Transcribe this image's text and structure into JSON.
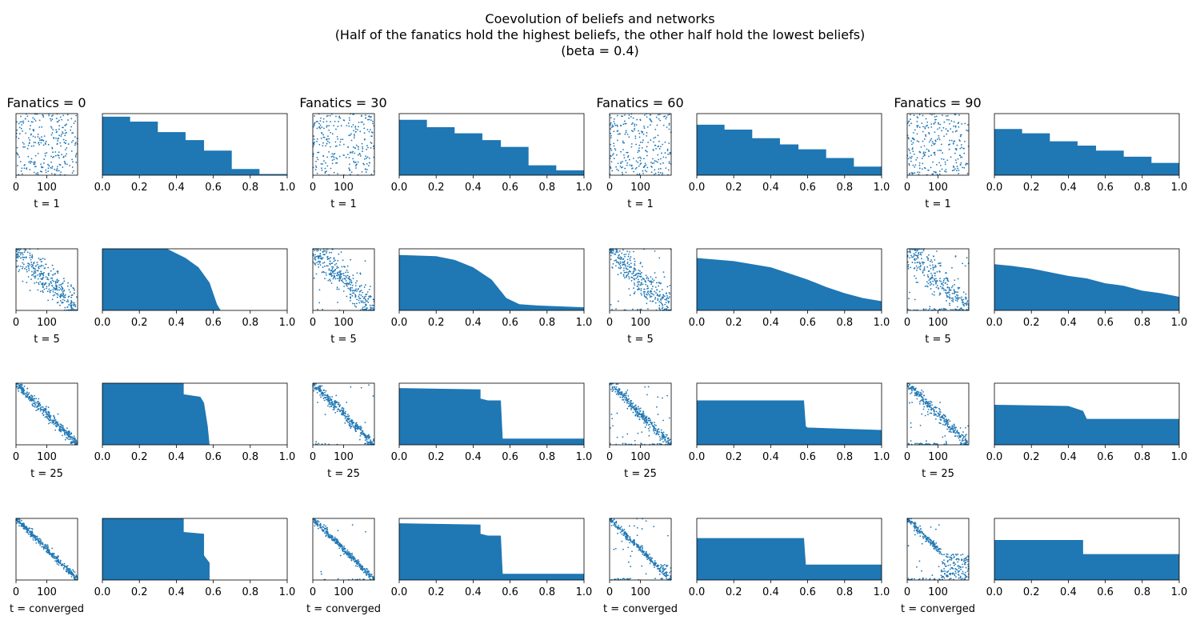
{
  "figure": {
    "title_lines": [
      "Coevolution of beliefs and networks",
      "(Half of the fanatics hold the highest beliefs, the other half hold the lowest beliefs)",
      "(beta = 0.4)"
    ]
  },
  "chart_data": {
    "type": "grid",
    "bar_color": "#1f77b4",
    "columns": [
      {
        "title": "Fanatics = 0",
        "fanatics": 0
      },
      {
        "title": "Fanatics = 30",
        "fanatics": 30
      },
      {
        "title": "Fanatics = 60",
        "fanatics": 60
      },
      {
        "title": "Fanatics = 90",
        "fanatics": 90
      }
    ],
    "rows": [
      {
        "label": "t = 1"
      },
      {
        "label": "t = 5"
      },
      {
        "label": "t = 25"
      },
      {
        "label": "t = converged"
      }
    ],
    "scatter_axes": {
      "type": "scatter",
      "xlim": [
        0,
        200
      ],
      "ylim": [
        0,
        200
      ],
      "xticks": [
        0,
        100
      ],
      "xtick_labels": [
        "0",
        "100"
      ],
      "marker_size": 1
    },
    "bar_axes": {
      "type": "bar",
      "xlim": [
        0,
        1
      ],
      "ylim": [
        0,
        1
      ],
      "xticks": [
        0,
        0.2,
        0.4,
        0.6,
        0.8,
        1.0
      ],
      "xtick_labels": [
        "0.0",
        "0.2",
        "0.4",
        "0.6",
        "0.8",
        "1.0"
      ],
      "yticks": []
    },
    "profiles": [
      [
        [
          [
            0,
            0.95
          ],
          [
            0.15,
            0.87
          ],
          [
            0.3,
            0.7
          ],
          [
            0.45,
            0.57
          ],
          [
            0.55,
            0.4
          ],
          [
            0.7,
            0.1
          ],
          [
            0.85,
            0.02
          ],
          [
            1.0,
            0.02
          ]
        ],
        [
          [
            0,
            1.0
          ],
          [
            0.35,
            1.0
          ],
          [
            0.45,
            0.85
          ],
          [
            0.52,
            0.7
          ],
          [
            0.58,
            0.45
          ],
          [
            0.62,
            0.1
          ],
          [
            0.64,
            0.0
          ],
          [
            1.0,
            0.0
          ]
        ],
        [
          [
            0,
            1.0
          ],
          [
            0.44,
            1.0
          ],
          [
            0.44,
            0.82
          ],
          [
            0.53,
            0.78
          ],
          [
            0.55,
            0.68
          ],
          [
            0.57,
            0.3
          ],
          [
            0.58,
            0.0
          ],
          [
            1.0,
            0.0
          ]
        ],
        [
          [
            0,
            1.0
          ],
          [
            0.44,
            1.0
          ],
          [
            0.44,
            0.78
          ],
          [
            0.55,
            0.75
          ],
          [
            0.55,
            0.4
          ],
          [
            0.58,
            0.28
          ],
          [
            0.58,
            0.0
          ],
          [
            1.0,
            0.0
          ]
        ]
      ],
      [
        [
          [
            0,
            0.9
          ],
          [
            0.15,
            0.78
          ],
          [
            0.3,
            0.68
          ],
          [
            0.45,
            0.57
          ],
          [
            0.55,
            0.46
          ],
          [
            0.7,
            0.16
          ],
          [
            0.85,
            0.08
          ],
          [
            1.0,
            0.08
          ]
        ],
        [
          [
            0,
            0.9
          ],
          [
            0.2,
            0.88
          ],
          [
            0.3,
            0.82
          ],
          [
            0.4,
            0.7
          ],
          [
            0.5,
            0.5
          ],
          [
            0.58,
            0.2
          ],
          [
            0.65,
            0.1
          ],
          [
            0.75,
            0.08
          ],
          [
            1.0,
            0.05
          ]
        ],
        [
          [
            0,
            0.92
          ],
          [
            0.44,
            0.9
          ],
          [
            0.44,
            0.75
          ],
          [
            0.48,
            0.72
          ],
          [
            0.55,
            0.72
          ],
          [
            0.56,
            0.1
          ],
          [
            0.58,
            0.1
          ],
          [
            1.0,
            0.1
          ]
        ],
        [
          [
            0,
            0.92
          ],
          [
            0.44,
            0.9
          ],
          [
            0.44,
            0.75
          ],
          [
            0.48,
            0.72
          ],
          [
            0.55,
            0.72
          ],
          [
            0.56,
            0.1
          ],
          [
            0.58,
            0.1
          ],
          [
            1.0,
            0.1
          ]
        ]
      ],
      [
        [
          [
            0,
            0.82
          ],
          [
            0.15,
            0.74
          ],
          [
            0.3,
            0.6
          ],
          [
            0.45,
            0.5
          ],
          [
            0.55,
            0.42
          ],
          [
            0.7,
            0.28
          ],
          [
            0.85,
            0.14
          ],
          [
            1.0,
            0.14
          ]
        ],
        [
          [
            0,
            0.85
          ],
          [
            0.2,
            0.8
          ],
          [
            0.3,
            0.75
          ],
          [
            0.4,
            0.7
          ],
          [
            0.5,
            0.6
          ],
          [
            0.6,
            0.5
          ],
          [
            0.7,
            0.38
          ],
          [
            0.8,
            0.28
          ],
          [
            0.9,
            0.2
          ],
          [
            1.0,
            0.15
          ]
        ],
        [
          [
            0,
            0.72
          ],
          [
            0.58,
            0.72
          ],
          [
            0.59,
            0.3
          ],
          [
            0.6,
            0.28
          ],
          [
            0.8,
            0.26
          ],
          [
            1.0,
            0.24
          ]
        ],
        [
          [
            0,
            0.68
          ],
          [
            0.58,
            0.68
          ],
          [
            0.59,
            0.25
          ],
          [
            1.0,
            0.25
          ]
        ]
      ],
      [
        [
          [
            0,
            0.75
          ],
          [
            0.15,
            0.68
          ],
          [
            0.3,
            0.55
          ],
          [
            0.45,
            0.48
          ],
          [
            0.55,
            0.4
          ],
          [
            0.7,
            0.3
          ],
          [
            0.85,
            0.2
          ],
          [
            1.0,
            0.2
          ]
        ],
        [
          [
            0,
            0.75
          ],
          [
            0.1,
            0.72
          ],
          [
            0.2,
            0.68
          ],
          [
            0.3,
            0.62
          ],
          [
            0.4,
            0.56
          ],
          [
            0.5,
            0.52
          ],
          [
            0.6,
            0.44
          ],
          [
            0.7,
            0.4
          ],
          [
            0.8,
            0.32
          ],
          [
            0.9,
            0.28
          ],
          [
            1.0,
            0.22
          ]
        ],
        [
          [
            0,
            0.65
          ],
          [
            0.4,
            0.63
          ],
          [
            0.48,
            0.55
          ],
          [
            0.5,
            0.42
          ],
          [
            0.6,
            0.42
          ],
          [
            1.0,
            0.42
          ]
        ],
        [
          [
            0,
            0.65
          ],
          [
            0.48,
            0.65
          ],
          [
            0.48,
            0.42
          ],
          [
            1.0,
            0.42
          ]
        ]
      ]
    ]
  }
}
